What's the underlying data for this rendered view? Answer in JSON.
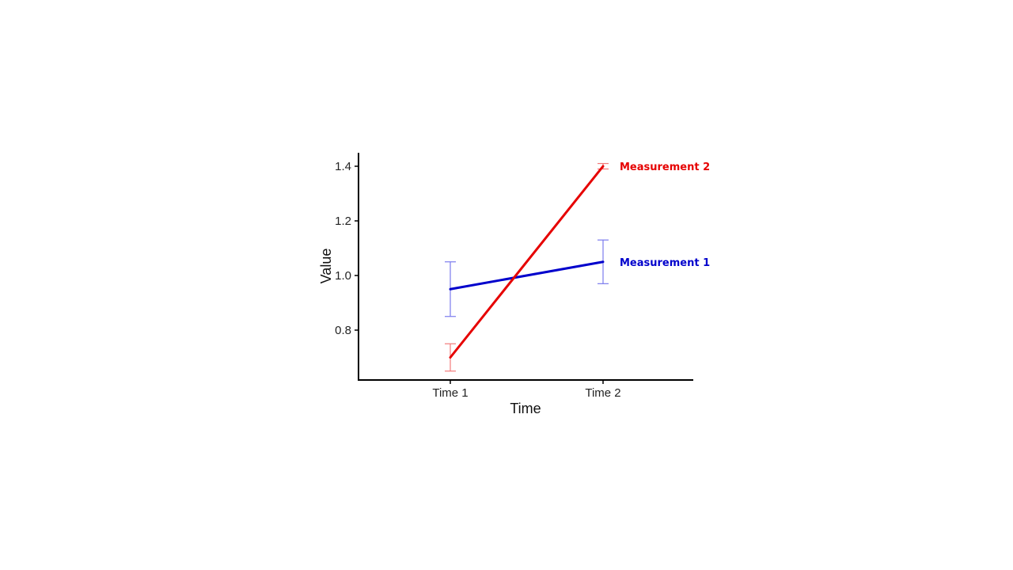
{
  "chart_data": {
    "type": "line",
    "xlabel": "Time",
    "ylabel": "Value",
    "categories": [
      "Time 1",
      "Time 2"
    ],
    "ylim": [
      0.61,
      1.45
    ],
    "yticks": [
      "0.8",
      "1.0",
      "1.2",
      "1.4"
    ],
    "grid": false,
    "legend": "direct labels at line ends (right)",
    "series": [
      {
        "name": "Measurement 1",
        "color": "#0000cc",
        "error_color": "#7b7bee",
        "values": [
          0.95,
          1.05
        ],
        "error_low": [
          0.85,
          0.97
        ],
        "error_high": [
          1.05,
          1.13
        ]
      },
      {
        "name": "Measurement 2",
        "color": "#e60000",
        "error_color": "#f27a7a",
        "values": [
          0.7,
          1.4
        ],
        "error_low": [
          0.65,
          1.39
        ],
        "error_high": [
          0.75,
          1.41
        ]
      }
    ]
  }
}
